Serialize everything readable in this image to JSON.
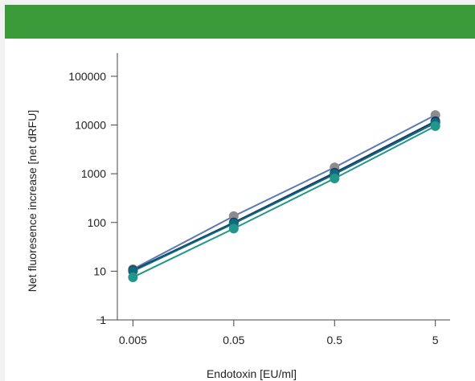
{
  "header": {
    "color": "#3a9a3a"
  },
  "chart_data": {
    "type": "scatter",
    "x_scale": "log",
    "y_scale": "log",
    "xlabel": "Endotoxin [EU/ml]",
    "ylabel": "Net fluoresence increase [net dRFU]",
    "x_ticks": [
      {
        "value": 0.005,
        "label": "0.005"
      },
      {
        "value": 0.05,
        "label": "0.05"
      },
      {
        "value": 0.5,
        "label": "0.5"
      },
      {
        "value": 5,
        "label": "5"
      }
    ],
    "y_ticks": [
      {
        "value": 1,
        "label": "1"
      },
      {
        "value": 10,
        "label": "10"
      },
      {
        "value": 100,
        "label": "100"
      },
      {
        "value": 1000,
        "label": "1000"
      },
      {
        "value": 10000,
        "label": "10000"
      },
      {
        "value": 100000,
        "label": "100000"
      }
    ],
    "xlim": [
      0.0035,
      7
    ],
    "ylim": [
      1,
      300000
    ],
    "x": [
      0.005,
      0.05,
      0.5,
      5
    ],
    "series": [
      {
        "color": "#8c8c8c",
        "line_color": "#5a78b4",
        "values": [
          11,
          135,
          1350,
          16000
        ]
      },
      {
        "color": "#1a3a6e",
        "line_color": "#1a3a6e",
        "values": [
          10.5,
          100,
          1050,
          12000
        ]
      },
      {
        "color": "#0f6a7a",
        "line_color": "#0f6a7a",
        "values": [
          10,
          95,
          980,
          11000
        ]
      },
      {
        "color": "#22968a",
        "line_color": "#22968a",
        "values": [
          7.5,
          75,
          800,
          9500
        ]
      }
    ]
  }
}
